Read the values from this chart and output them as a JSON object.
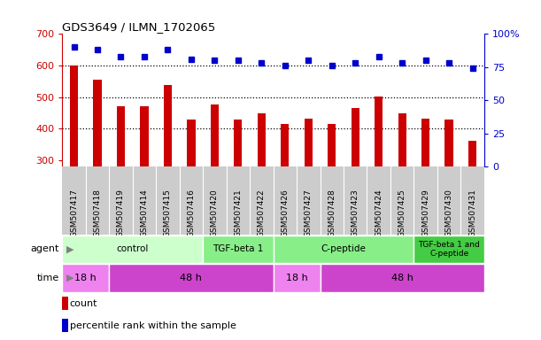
{
  "title": "GDS3649 / ILMN_1702065",
  "samples": [
    "GSM507417",
    "GSM507418",
    "GSM507419",
    "GSM507414",
    "GSM507415",
    "GSM507416",
    "GSM507420",
    "GSM507421",
    "GSM507422",
    "GSM507426",
    "GSM507427",
    "GSM507428",
    "GSM507423",
    "GSM507424",
    "GSM507425",
    "GSM507429",
    "GSM507430",
    "GSM507431"
  ],
  "counts": [
    601,
    556,
    470,
    470,
    538,
    430,
    478,
    430,
    449,
    415,
    433,
    415,
    465,
    502,
    448,
    433,
    430,
    362
  ],
  "percentile_ranks": [
    90,
    88,
    83,
    83,
    88,
    81,
    80,
    80,
    78,
    76,
    80,
    76,
    78,
    83,
    78,
    80,
    78,
    74
  ],
  "ylim_left": [
    280,
    700
  ],
  "ylim_right": [
    0,
    100
  ],
  "yticks_left": [
    300,
    400,
    500,
    600,
    700
  ],
  "yticks_right": [
    0,
    25,
    50,
    75,
    100
  ],
  "agent_groups": [
    {
      "label": "control",
      "start": 0,
      "end": 6,
      "color": "#ccffcc"
    },
    {
      "label": "TGF-beta 1",
      "start": 6,
      "end": 9,
      "color": "#88ee88"
    },
    {
      "label": "C-peptide",
      "start": 9,
      "end": 15,
      "color": "#88ee88"
    },
    {
      "label": "TGF-beta 1 and\nC-peptide",
      "start": 15,
      "end": 18,
      "color": "#44cc44"
    }
  ],
  "time_groups": [
    {
      "label": "18 h",
      "start": 0,
      "end": 2,
      "color": "#ee82ee"
    },
    {
      "label": "48 h",
      "start": 2,
      "end": 9,
      "color": "#cc44cc"
    },
    {
      "label": "18 h",
      "start": 9,
      "end": 11,
      "color": "#ee82ee"
    },
    {
      "label": "48 h",
      "start": 11,
      "end": 18,
      "color": "#cc44cc"
    }
  ],
  "bar_color": "#cc0000",
  "dot_color": "#0000cc",
  "grid_color": "#000000",
  "left_axis_color": "#cc0000",
  "right_axis_color": "#0000cc",
  "bg_color": "#ffffff",
  "label_area_bg": "#cccccc"
}
